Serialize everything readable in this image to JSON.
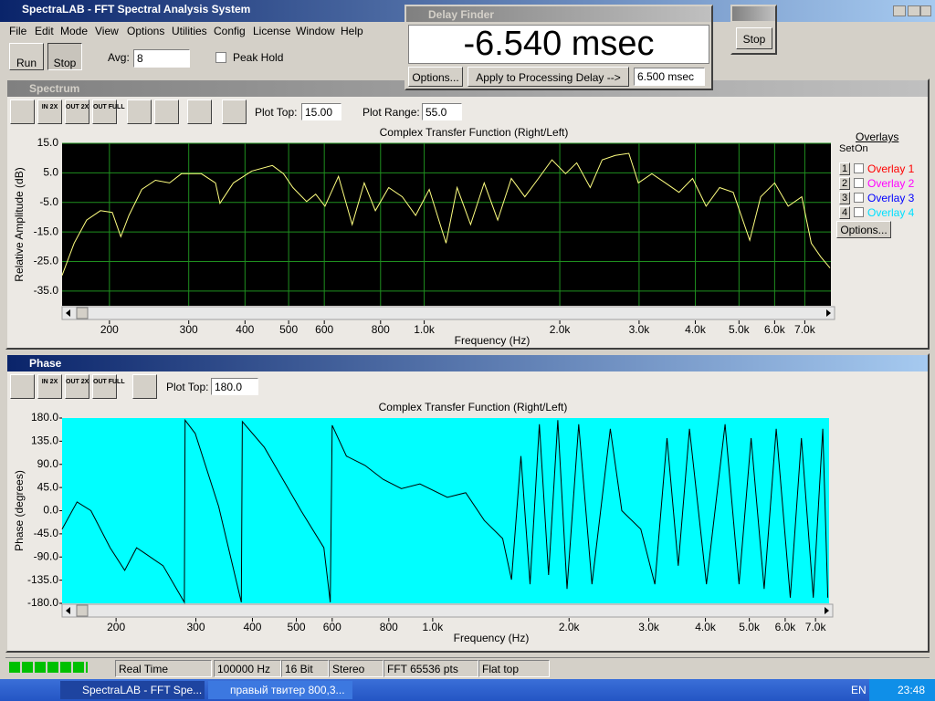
{
  "window": {
    "title": "SpectraLAB - FFT Spectral Analysis System",
    "menu": [
      "File",
      "Edit",
      "Mode",
      "View",
      "Options",
      "Utilities",
      "Config",
      "License",
      "Window",
      "Help"
    ]
  },
  "toolbar": {
    "run": "Run",
    "stop": "Stop",
    "avg_label": "Avg:",
    "avg_value": "8",
    "peak_hold": "Peak Hold"
  },
  "delay_finder": {
    "title": "Delay Finder",
    "reading": "-6.540 msec",
    "options": "Options...",
    "apply": "Apply to Processing Delay -->",
    "delay": "6.500 msec"
  },
  "stop_window": {
    "stop": "Stop"
  },
  "spectrum_window": {
    "title": "Spectrum",
    "zoom": [
      "IN 2X",
      "OUT 2X",
      "OUT FULL"
    ],
    "plot_top_label": "Plot Top:",
    "plot_top": "15.00",
    "plot_range_label": "Plot Range:",
    "plot_range": "55.0"
  },
  "overlays": {
    "title": "Overlays",
    "set": "Set",
    "on": "On",
    "rows": [
      {
        "set": "1",
        "name": "Overlay 1",
        "color": "#ff0000"
      },
      {
        "set": "2",
        "name": "Overlay 2",
        "color": "#ff00ff"
      },
      {
        "set": "3",
        "name": "Overlay 3",
        "color": "#0000ff"
      },
      {
        "set": "4",
        "name": "Overlay 4",
        "color": "#00e0ff"
      }
    ],
    "options": "Options..."
  },
  "phase_window": {
    "title": "Phase",
    "zoom": [
      "IN 2X",
      "OUT 2X",
      "OUT FULL"
    ],
    "plot_top_label": "Plot Top:",
    "plot_top": "180.0"
  },
  "status_bar": [
    "Real Time",
    "100000 Hz",
    "16 Bit",
    "Stereo",
    "FFT 65536 pts",
    "Flat top"
  ],
  "taskbar": {
    "items": [
      "SpectraLAB - FFT Spe...",
      "правый твитер 800,3..."
    ],
    "language": "EN",
    "clock": "23:48"
  },
  "chart_data": [
    {
      "type": "line",
      "title": "Complex Transfer Function (Right/Left)",
      "x_label": "Frequency (Hz)",
      "y_label": "Relative Amplitude (dB)",
      "xscale": "log",
      "xlim": [
        157,
        8000
      ],
      "ylim": [
        -40,
        15
      ],
      "grid": true,
      "color": "#ffff80",
      "xticks": [
        200,
        300,
        400,
        500,
        600,
        800,
        {
          "value": 1000,
          "label": "1.0k"
        },
        {
          "value": 2000,
          "label": "2.0k"
        },
        {
          "value": 3000,
          "label": "3.0k"
        },
        {
          "value": 4000,
          "label": "4.0k"
        },
        {
          "value": 5000,
          "label": "5.0k"
        },
        {
          "value": 6000,
          "label": "6.0k"
        },
        {
          "value": 7000,
          "label": "7.0k"
        }
      ],
      "yticks": [
        {
          "value": 15,
          "label": "15.0"
        },
        {
          "value": 5,
          "label": "5.0"
        },
        {
          "value": -5,
          "label": "-5.0"
        },
        {
          "value": -15,
          "label": "-15.0"
        },
        {
          "value": -25,
          "label": "-25.0"
        },
        {
          "value": -35,
          "label": "-35.0"
        }
      ],
      "x": [
        157,
        167,
        178,
        191,
        203,
        212,
        221,
        236,
        253,
        272,
        289,
        320,
        344,
        352,
        377,
        414,
        460,
        487,
        511,
        548,
        574,
        602,
        645,
        692,
        736,
        779,
        834,
        894,
        957,
        1026,
        1118,
        1183,
        1268,
        1359,
        1456,
        1561,
        1673,
        1793,
        1922,
        2060,
        2181,
        2337,
        2484,
        2656,
        2847,
        2989,
        3203,
        3433,
        3679,
        3943,
        4226,
        4529,
        4854,
        5282,
        5588,
        6000,
        6430,
        6892,
        7235,
        7592,
        7963
      ],
      "values": [
        -29.7,
        -18.8,
        -11,
        -7.8,
        -8.4,
        -16.6,
        -9.4,
        -0.6,
        2.5,
        1.6,
        4.7,
        4.7,
        1.6,
        -5.3,
        1.6,
        5.6,
        7.5,
        4.7,
        0,
        -4.7,
        -2.2,
        -6.3,
        3.8,
        -12.5,
        1.6,
        -7.8,
        0,
        -3.1,
        -9.4,
        -0.6,
        -18.8,
        0,
        -12.5,
        1.6,
        -11,
        3.1,
        -3.1,
        3.1,
        9.4,
        4.7,
        8.4,
        0,
        9.4,
        10.9,
        11.6,
        1.6,
        4.7,
        1.6,
        -1.6,
        3.1,
        -6.3,
        0,
        -1.6,
        -17.8,
        -3.1,
        1.6,
        -6.3,
        -3.1,
        -18.8,
        -23.4,
        -27.2
      ]
    },
    {
      "type": "line",
      "title": "Complex Transfer Function (Right/Left)",
      "x_label": "Frequency (Hz)",
      "y_label": "Phase (degrees)",
      "xscale": "log",
      "xlim": [
        152,
        7500
      ],
      "ylim": [
        -180,
        180
      ],
      "grid": false,
      "color": "#000000",
      "xticks": [
        200,
        300,
        400,
        500,
        600,
        800,
        {
          "value": 1000,
          "label": "1.0k"
        },
        {
          "value": 2000,
          "label": "2.0k"
        },
        {
          "value": 3000,
          "label": "3.0k"
        },
        {
          "value": 4000,
          "label": "4.0k"
        },
        {
          "value": 5000,
          "label": "5.0k"
        },
        {
          "value": 6000,
          "label": "6.0k"
        },
        {
          "value": 7000,
          "label": "7.0k"
        }
      ],
      "yticks": [
        {
          "value": 180,
          "label": "180.0"
        },
        {
          "value": 135,
          "label": "135.0"
        },
        {
          "value": 90,
          "label": "90.0"
        },
        {
          "value": 45,
          "label": "45.0"
        },
        {
          "value": 0,
          "label": "0.0"
        },
        {
          "value": -45,
          "label": "-45.0"
        },
        {
          "value": -90,
          "label": "-90.0"
        },
        {
          "value": -135,
          "label": "-135.0"
        },
        {
          "value": -180,
          "label": "-180.0"
        }
      ],
      "x": [
        152,
        164,
        176,
        194,
        209,
        222,
        230,
        254,
        283,
        284,
        299,
        337,
        378,
        380,
        425,
        512,
        575,
        594,
        600,
        645,
        709,
        777,
        853,
        937,
        1077,
        1183,
        1300,
        1427,
        1493,
        1566,
        1640,
        1720,
        1802,
        1889,
        1979,
        2101,
        2247,
        2467,
        2615,
        2880,
        3093,
        3290,
        3484,
        3689,
        4021,
        4420,
        4745,
        5046,
        5392,
        5732,
        6157,
        6515,
        6920,
        7262,
        7450
      ],
      "values": [
        -36,
        17,
        0,
        -72,
        -116,
        -72,
        -81,
        -107,
        -178,
        176,
        150,
        8,
        -178,
        173,
        123,
        0,
        -72,
        -178,
        166,
        106,
        88,
        61,
        43,
        52,
        26,
        35,
        -19,
        -54,
        -134,
        106,
        -143,
        168,
        -125,
        176,
        -152,
        168,
        -143,
        159,
        0,
        -36,
        -143,
        141,
        -107,
        159,
        -143,
        168,
        -143,
        141,
        -152,
        159,
        -169,
        141,
        -169,
        159,
        -169
      ]
    }
  ]
}
